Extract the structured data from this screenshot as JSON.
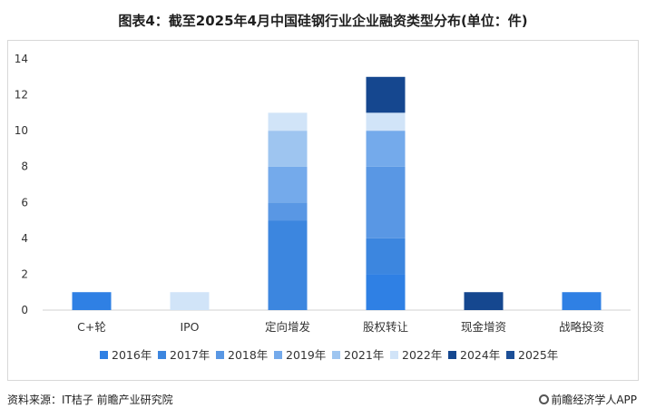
{
  "title": "图表4：截至2025年4月中国硅钢行业企业融资类型分布(单位：件)",
  "source": "资料来源：IT桔子 前瞻产业研究院",
  "brand": "前瞻经济学人APP",
  "colors": {
    "2016年": "#2f80e4",
    "2017年": "#3c86df",
    "2018年": "#5997e4",
    "2019年": "#74aaeb",
    "2021年": "#9ec5f0",
    "2022年": "#d1e4f8",
    "2024年": "#15478f",
    "2025年": "#1c4f97"
  },
  "chart_data": {
    "type": "bar",
    "stacked": true,
    "categories": [
      "C+轮",
      "IPO",
      "定向增发",
      "股权转让",
      "现金增资",
      "战略投资"
    ],
    "series": [
      {
        "name": "2016年",
        "values": [
          1,
          0,
          0,
          2,
          0,
          1
        ]
      },
      {
        "name": "2017年",
        "values": [
          0,
          0,
          5,
          2,
          0,
          0
        ]
      },
      {
        "name": "2018年",
        "values": [
          0,
          0,
          1,
          4,
          0,
          0
        ]
      },
      {
        "name": "2019年",
        "values": [
          0,
          0,
          2,
          2,
          0,
          0
        ]
      },
      {
        "name": "2021年",
        "values": [
          0,
          0,
          2,
          0,
          0,
          0
        ]
      },
      {
        "name": "2022年",
        "values": [
          0,
          1,
          1,
          1,
          0,
          0
        ]
      },
      {
        "name": "2024年",
        "values": [
          0,
          0,
          0,
          2,
          1,
          0
        ]
      },
      {
        "name": "2025年",
        "values": [
          0,
          0,
          0,
          0,
          0,
          0
        ]
      }
    ],
    "yticks": [
      0,
      2,
      4,
      6,
      8,
      10,
      12,
      14
    ],
    "ylim": [
      0,
      14
    ],
    "grid": false,
    "legend": "bottom"
  }
}
